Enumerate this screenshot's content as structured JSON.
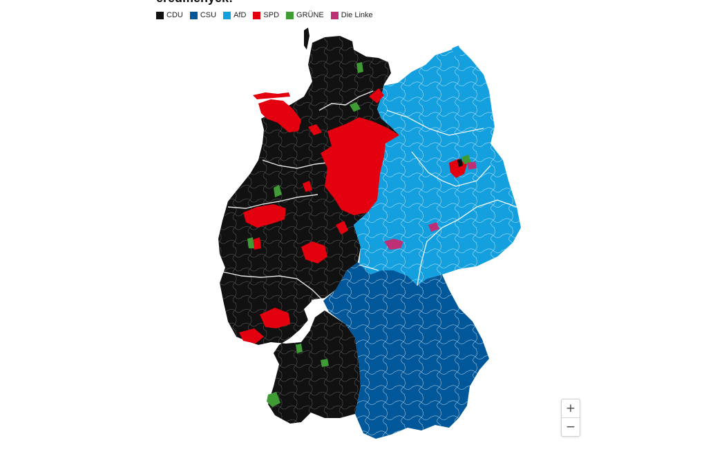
{
  "title": "eredmények:",
  "legend": [
    {
      "label": "CDU",
      "color": "#111111"
    },
    {
      "label": "CSU",
      "color": "#00589a"
    },
    {
      "label": "AfD",
      "color": "#14a0de"
    },
    {
      "label": "SPD",
      "color": "#e3000f"
    },
    {
      "label": "GRÜNE",
      "color": "#3f9c35"
    },
    {
      "label": "Die Linke",
      "color": "#be3075"
    }
  ],
  "zoom": {
    "in_label": "+",
    "out_label": "−"
  }
}
